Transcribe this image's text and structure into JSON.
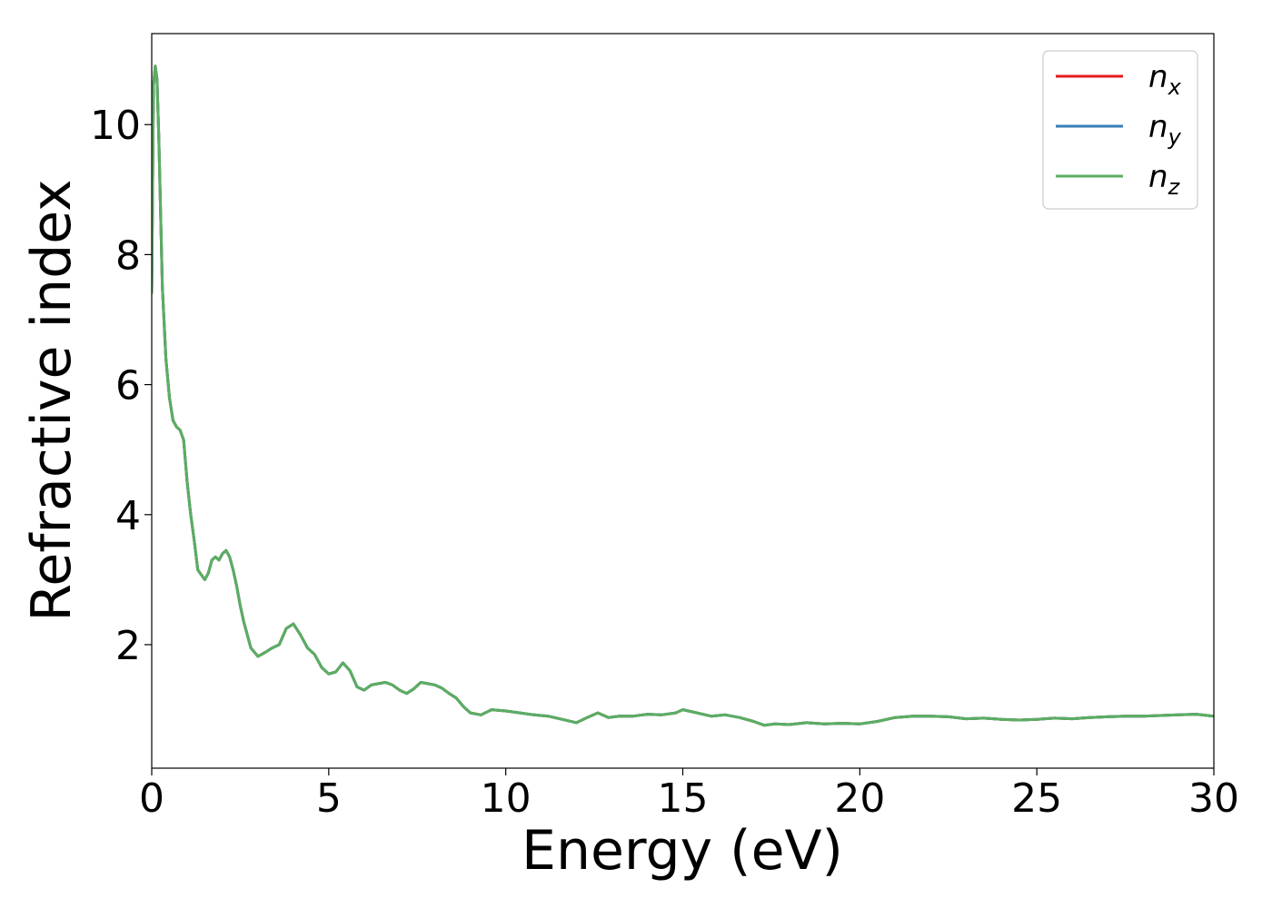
{
  "chart_data": {
    "type": "line",
    "title": "",
    "xlabel": "Energy (eV)",
    "ylabel": "Refractive index",
    "xlim": [
      0,
      30
    ],
    "ylim": [
      0.1,
      11.4
    ],
    "xticks": [
      0,
      5,
      10,
      15,
      20,
      25,
      30
    ],
    "xtick_labels": [
      "0",
      "5",
      "10",
      "15",
      "20",
      "25",
      "30"
    ],
    "yticks": [
      2,
      4,
      6,
      8,
      10
    ],
    "ytick_labels": [
      "2",
      "4",
      "6",
      "8",
      "10"
    ],
    "grid": false,
    "legend_position": "top-right",
    "series": [
      {
        "name": "n_x",
        "legend_base": "n",
        "legend_sub": "x",
        "color": "#e41a1c",
        "x": [
          0,
          0.05,
          0.1,
          0.15,
          0.2,
          0.3,
          0.4,
          0.5,
          0.6,
          0.7,
          0.8,
          0.9,
          1.0,
          1.1,
          1.2,
          1.3,
          1.5,
          1.6,
          1.7,
          1.8,
          1.9,
          2.0,
          2.1,
          2.2,
          2.3,
          2.4,
          2.5,
          2.6,
          2.7,
          2.8,
          3.0,
          3.2,
          3.4,
          3.6,
          3.8,
          4.0,
          4.2,
          4.4,
          4.6,
          4.8,
          5.0,
          5.2,
          5.4,
          5.6,
          5.8,
          6.0,
          6.2,
          6.4,
          6.6,
          6.8,
          7.0,
          7.2,
          7.4,
          7.6,
          7.8,
          8.0,
          8.2,
          8.4,
          8.6,
          8.8,
          9.0,
          9.3,
          9.6,
          10.0,
          10.4,
          10.8,
          11.2,
          11.6,
          12.0,
          12.3,
          12.6,
          12.9,
          13.2,
          13.6,
          14.0,
          14.4,
          14.8,
          15.0,
          15.4,
          15.8,
          16.2,
          16.6,
          17.0,
          17.3,
          17.6,
          18.0,
          18.5,
          19.0,
          19.5,
          20.0,
          20.5,
          21.0,
          21.5,
          22.0,
          22.5,
          23.0,
          23.5,
          24.0,
          24.5,
          25.0,
          25.5,
          26.0,
          26.5,
          27.0,
          27.5,
          28.0,
          28.5,
          29.0,
          29.5,
          30.0
        ],
        "y": [
          7.4,
          10.6,
          10.9,
          10.7,
          9.8,
          7.5,
          6.4,
          5.8,
          5.45,
          5.35,
          5.3,
          5.15,
          4.5,
          4.0,
          3.6,
          3.15,
          3.0,
          3.1,
          3.3,
          3.35,
          3.3,
          3.4,
          3.45,
          3.35,
          3.15,
          2.9,
          2.6,
          2.35,
          2.15,
          1.95,
          1.82,
          1.88,
          1.95,
          2.0,
          2.25,
          2.32,
          2.15,
          1.95,
          1.85,
          1.65,
          1.55,
          1.58,
          1.72,
          1.6,
          1.35,
          1.3,
          1.38,
          1.4,
          1.42,
          1.38,
          1.3,
          1.25,
          1.32,
          1.42,
          1.4,
          1.38,
          1.33,
          1.25,
          1.18,
          1.05,
          0.95,
          0.92,
          1.0,
          0.98,
          0.95,
          0.92,
          0.9,
          0.85,
          0.8,
          0.88,
          0.95,
          0.88,
          0.9,
          0.9,
          0.93,
          0.92,
          0.95,
          1.0,
          0.95,
          0.9,
          0.92,
          0.88,
          0.82,
          0.76,
          0.78,
          0.77,
          0.8,
          0.78,
          0.79,
          0.78,
          0.82,
          0.88,
          0.9,
          0.9,
          0.89,
          0.86,
          0.87,
          0.85,
          0.84,
          0.85,
          0.87,
          0.86,
          0.88,
          0.89,
          0.9,
          0.9,
          0.91,
          0.92,
          0.93,
          0.9
        ]
      },
      {
        "name": "n_y",
        "legend_base": "n",
        "legend_sub": "y",
        "color": "#377eb8",
        "x": [
          0,
          0.05,
          0.1,
          0.15,
          0.2,
          0.3,
          0.4,
          0.5,
          0.6,
          0.7,
          0.8,
          0.9,
          1.0,
          1.1,
          1.2,
          1.3,
          1.5,
          1.6,
          1.7,
          1.8,
          1.9,
          2.0,
          2.1,
          2.2,
          2.3,
          2.4,
          2.5,
          2.6,
          2.7,
          2.8,
          3.0,
          3.2,
          3.4,
          3.6,
          3.8,
          4.0,
          4.2,
          4.4,
          4.6,
          4.8,
          5.0,
          5.2,
          5.4,
          5.6,
          5.8,
          6.0,
          6.2,
          6.4,
          6.6,
          6.8,
          7.0,
          7.2,
          7.4,
          7.6,
          7.8,
          8.0,
          8.2,
          8.4,
          8.6,
          8.8,
          9.0,
          9.3,
          9.6,
          10.0,
          10.4,
          10.8,
          11.2,
          11.6,
          12.0,
          12.3,
          12.6,
          12.9,
          13.2,
          13.6,
          14.0,
          14.4,
          14.8,
          15.0,
          15.4,
          15.8,
          16.2,
          16.6,
          17.0,
          17.3,
          17.6,
          18.0,
          18.5,
          19.0,
          19.5,
          20.0,
          20.5,
          21.0,
          21.5,
          22.0,
          22.5,
          23.0,
          23.5,
          24.0,
          24.5,
          25.0,
          25.5,
          26.0,
          26.5,
          27.0,
          27.5,
          28.0,
          28.5,
          29.0,
          29.5,
          30.0
        ],
        "y": [
          7.4,
          10.6,
          10.9,
          10.7,
          9.8,
          7.5,
          6.4,
          5.8,
          5.45,
          5.35,
          5.3,
          5.15,
          4.5,
          4.0,
          3.6,
          3.15,
          3.0,
          3.1,
          3.3,
          3.35,
          3.3,
          3.4,
          3.45,
          3.35,
          3.15,
          2.9,
          2.6,
          2.35,
          2.15,
          1.95,
          1.82,
          1.88,
          1.95,
          2.0,
          2.25,
          2.32,
          2.15,
          1.95,
          1.85,
          1.65,
          1.55,
          1.58,
          1.72,
          1.6,
          1.35,
          1.3,
          1.38,
          1.4,
          1.42,
          1.38,
          1.3,
          1.25,
          1.32,
          1.42,
          1.4,
          1.38,
          1.33,
          1.25,
          1.18,
          1.05,
          0.95,
          0.92,
          1.0,
          0.98,
          0.95,
          0.92,
          0.9,
          0.85,
          0.8,
          0.88,
          0.95,
          0.88,
          0.9,
          0.9,
          0.93,
          0.92,
          0.95,
          1.0,
          0.95,
          0.9,
          0.92,
          0.88,
          0.82,
          0.76,
          0.78,
          0.77,
          0.8,
          0.78,
          0.79,
          0.78,
          0.82,
          0.88,
          0.9,
          0.9,
          0.89,
          0.86,
          0.87,
          0.85,
          0.84,
          0.85,
          0.87,
          0.86,
          0.88,
          0.89,
          0.9,
          0.9,
          0.91,
          0.92,
          0.93,
          0.9
        ]
      },
      {
        "name": "n_z",
        "legend_base": "n",
        "legend_sub": "z",
        "color": "#5aae61",
        "x": [
          0,
          0.05,
          0.1,
          0.15,
          0.2,
          0.3,
          0.4,
          0.5,
          0.6,
          0.7,
          0.8,
          0.9,
          1.0,
          1.1,
          1.2,
          1.3,
          1.5,
          1.6,
          1.7,
          1.8,
          1.9,
          2.0,
          2.1,
          2.2,
          2.3,
          2.4,
          2.5,
          2.6,
          2.7,
          2.8,
          3.0,
          3.2,
          3.4,
          3.6,
          3.8,
          4.0,
          4.2,
          4.4,
          4.6,
          4.8,
          5.0,
          5.2,
          5.4,
          5.6,
          5.8,
          6.0,
          6.2,
          6.4,
          6.6,
          6.8,
          7.0,
          7.2,
          7.4,
          7.6,
          7.8,
          8.0,
          8.2,
          8.4,
          8.6,
          8.8,
          9.0,
          9.3,
          9.6,
          10.0,
          10.4,
          10.8,
          11.2,
          11.6,
          12.0,
          12.3,
          12.6,
          12.9,
          13.2,
          13.6,
          14.0,
          14.4,
          14.8,
          15.0,
          15.4,
          15.8,
          16.2,
          16.6,
          17.0,
          17.3,
          17.6,
          18.0,
          18.5,
          19.0,
          19.5,
          20.0,
          20.5,
          21.0,
          21.5,
          22.0,
          22.5,
          23.0,
          23.5,
          24.0,
          24.5,
          25.0,
          25.5,
          26.0,
          26.5,
          27.0,
          27.5,
          28.0,
          28.5,
          29.0,
          29.5,
          30.0
        ],
        "y": [
          7.4,
          10.6,
          10.9,
          10.7,
          9.8,
          7.5,
          6.4,
          5.8,
          5.45,
          5.35,
          5.3,
          5.15,
          4.5,
          4.0,
          3.6,
          3.15,
          3.0,
          3.1,
          3.3,
          3.35,
          3.3,
          3.4,
          3.45,
          3.35,
          3.15,
          2.9,
          2.6,
          2.35,
          2.15,
          1.95,
          1.82,
          1.88,
          1.95,
          2.0,
          2.25,
          2.32,
          2.15,
          1.95,
          1.85,
          1.65,
          1.55,
          1.58,
          1.72,
          1.6,
          1.35,
          1.3,
          1.38,
          1.4,
          1.42,
          1.38,
          1.3,
          1.25,
          1.32,
          1.42,
          1.4,
          1.38,
          1.33,
          1.25,
          1.18,
          1.05,
          0.95,
          0.92,
          1.0,
          0.98,
          0.95,
          0.92,
          0.9,
          0.85,
          0.8,
          0.88,
          0.95,
          0.88,
          0.9,
          0.9,
          0.93,
          0.92,
          0.95,
          1.0,
          0.95,
          0.9,
          0.92,
          0.88,
          0.82,
          0.76,
          0.78,
          0.77,
          0.8,
          0.78,
          0.79,
          0.78,
          0.82,
          0.88,
          0.9,
          0.9,
          0.89,
          0.86,
          0.87,
          0.85,
          0.84,
          0.85,
          0.87,
          0.86,
          0.88,
          0.89,
          0.9,
          0.9,
          0.91,
          0.92,
          0.93,
          0.9
        ]
      }
    ]
  }
}
